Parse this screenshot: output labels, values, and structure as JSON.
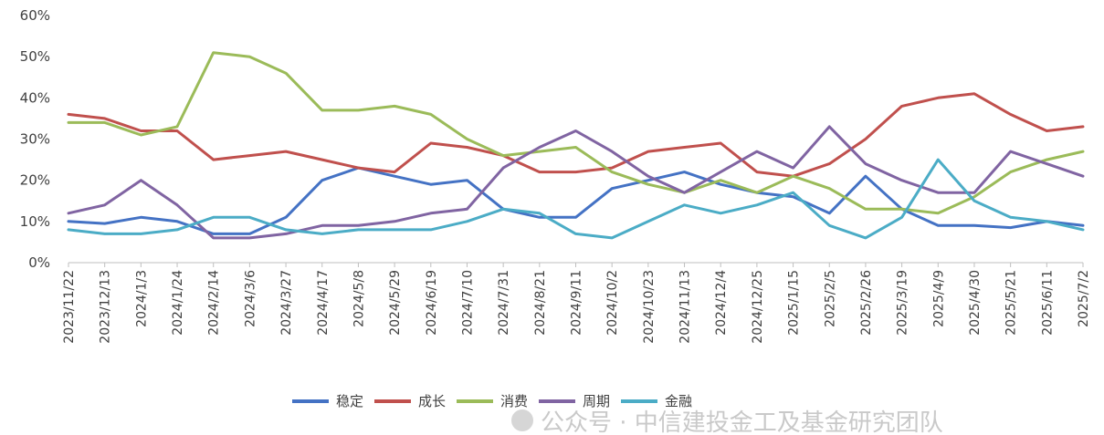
{
  "chart_data": {
    "type": "line",
    "x_labels": [
      "2023/11/22",
      "2023/12/13",
      "2024/1/3",
      "2024/1/24",
      "2024/2/14",
      "2024/3/6",
      "2024/3/27",
      "2024/4/17",
      "2024/5/8",
      "2024/5/29",
      "2024/6/19",
      "2024/7/10",
      "2024/7/31",
      "2024/8/21",
      "2024/9/11",
      "2024/10/2",
      "2024/10/23",
      "2024/11/13",
      "2024/12/4",
      "2024/12/25",
      "2025/1/15",
      "2025/2/5",
      "2025/2/26",
      "2025/3/19",
      "2025/4/9",
      "2025/4/30",
      "2025/5/21",
      "2025/6/11",
      "2025/7/2"
    ],
    "y_ticks": [
      "0%",
      "10%",
      "20%",
      "30%",
      "40%",
      "50%",
      "60%"
    ],
    "ylim": [
      0,
      60
    ],
    "legend_position": "bottom",
    "series": [
      {
        "name": "稳定",
        "color": "#4472c4",
        "values": [
          10,
          9.5,
          11,
          10,
          7,
          7,
          11,
          20,
          23,
          21,
          19,
          20,
          13,
          11,
          11,
          18,
          20,
          22,
          19,
          17,
          16,
          12,
          21,
          13,
          9,
          9,
          8.5,
          10,
          9
        ]
      },
      {
        "name": "成长",
        "color": "#c0504d",
        "values": [
          36,
          35,
          32,
          32,
          25,
          26,
          27,
          25,
          23,
          22,
          29,
          28,
          26,
          22,
          22,
          23,
          27,
          28,
          29,
          22,
          21,
          24,
          30,
          38,
          40,
          41,
          36,
          32,
          33
        ]
      },
      {
        "name": "消费",
        "color": "#9bbb59",
        "values": [
          34,
          34,
          31,
          33,
          51,
          50,
          46,
          37,
          37,
          38,
          36,
          30,
          26,
          27,
          28,
          22,
          19,
          17,
          20,
          17,
          21,
          18,
          13,
          13,
          12,
          16,
          22,
          25,
          27
        ]
      },
      {
        "name": "周期",
        "color": "#8064a2",
        "values": [
          12,
          14,
          20,
          14,
          6,
          6,
          7,
          9,
          9,
          10,
          12,
          13,
          23,
          28,
          32,
          27,
          21,
          17,
          22,
          27,
          23,
          33,
          24,
          20,
          17,
          17,
          27,
          24,
          21
        ]
      },
      {
        "name": "金融",
        "color": "#4bacc6",
        "values": [
          8,
          7,
          7,
          8,
          11,
          11,
          8,
          7,
          8,
          8,
          8,
          10,
          13,
          12,
          7,
          6,
          10,
          14,
          12,
          14,
          17,
          9,
          6,
          11,
          25,
          15,
          11,
          10,
          8
        ]
      }
    ]
  },
  "watermark": "公众号 · 中信建投金工及基金研究团队"
}
